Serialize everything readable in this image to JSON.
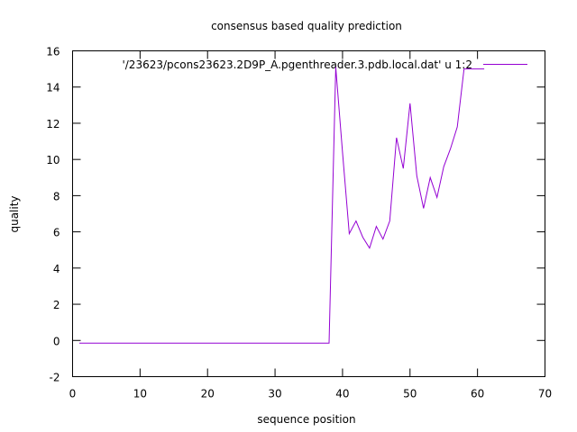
{
  "chart_data": {
    "type": "line",
    "title": "consensus based quality prediction",
    "xlabel": "sequence position",
    "ylabel": "quality",
    "xlim": [
      0,
      70
    ],
    "ylim": [
      -2,
      16
    ],
    "xticks": [
      0,
      10,
      20,
      30,
      40,
      50,
      60,
      70
    ],
    "yticks": [
      -2,
      0,
      2,
      4,
      6,
      8,
      10,
      12,
      14,
      16
    ],
    "grid": false,
    "legend": {
      "position": "top-right",
      "label": "'/23623/pcons23623.2D9P_A.pgenthreader.3.pdb.local.dat' u 1:2",
      "color": "#9400d3"
    },
    "series": [
      {
        "name": "'/23623/pcons23623.2D9P_A.pgenthreader.3.pdb.local.dat' u 1:2",
        "color": "#9400d3",
        "x": [
          1,
          2,
          3,
          4,
          5,
          6,
          7,
          8,
          9,
          10,
          11,
          12,
          13,
          14,
          15,
          16,
          17,
          18,
          19,
          20,
          21,
          22,
          23,
          24,
          25,
          26,
          27,
          28,
          29,
          30,
          31,
          32,
          33,
          34,
          35,
          36,
          37,
          38,
          39,
          40,
          41,
          42,
          43,
          44,
          45,
          46,
          47,
          48,
          49,
          50,
          51,
          52,
          53,
          54,
          55,
          56,
          57,
          58,
          59,
          60,
          61
        ],
        "y": [
          -0.15,
          -0.15,
          -0.15,
          -0.15,
          -0.15,
          -0.15,
          -0.15,
          -0.15,
          -0.15,
          -0.15,
          -0.15,
          -0.15,
          -0.15,
          -0.15,
          -0.15,
          -0.15,
          -0.15,
          -0.15,
          -0.15,
          -0.15,
          -0.15,
          -0.15,
          -0.15,
          -0.15,
          -0.15,
          -0.15,
          -0.15,
          -0.15,
          -0.15,
          -0.15,
          -0.15,
          -0.15,
          -0.15,
          -0.15,
          -0.15,
          -0.15,
          -0.15,
          -0.15,
          15.1,
          10.4,
          5.9,
          6.6,
          5.7,
          5.1,
          6.3,
          5.6,
          6.6,
          11.2,
          9.5,
          13.1,
          9.1,
          7.3,
          9.0,
          7.9,
          9.6,
          10.6,
          11.8,
          15.0,
          15.0,
          15.0,
          15.0
        ]
      }
    ]
  }
}
